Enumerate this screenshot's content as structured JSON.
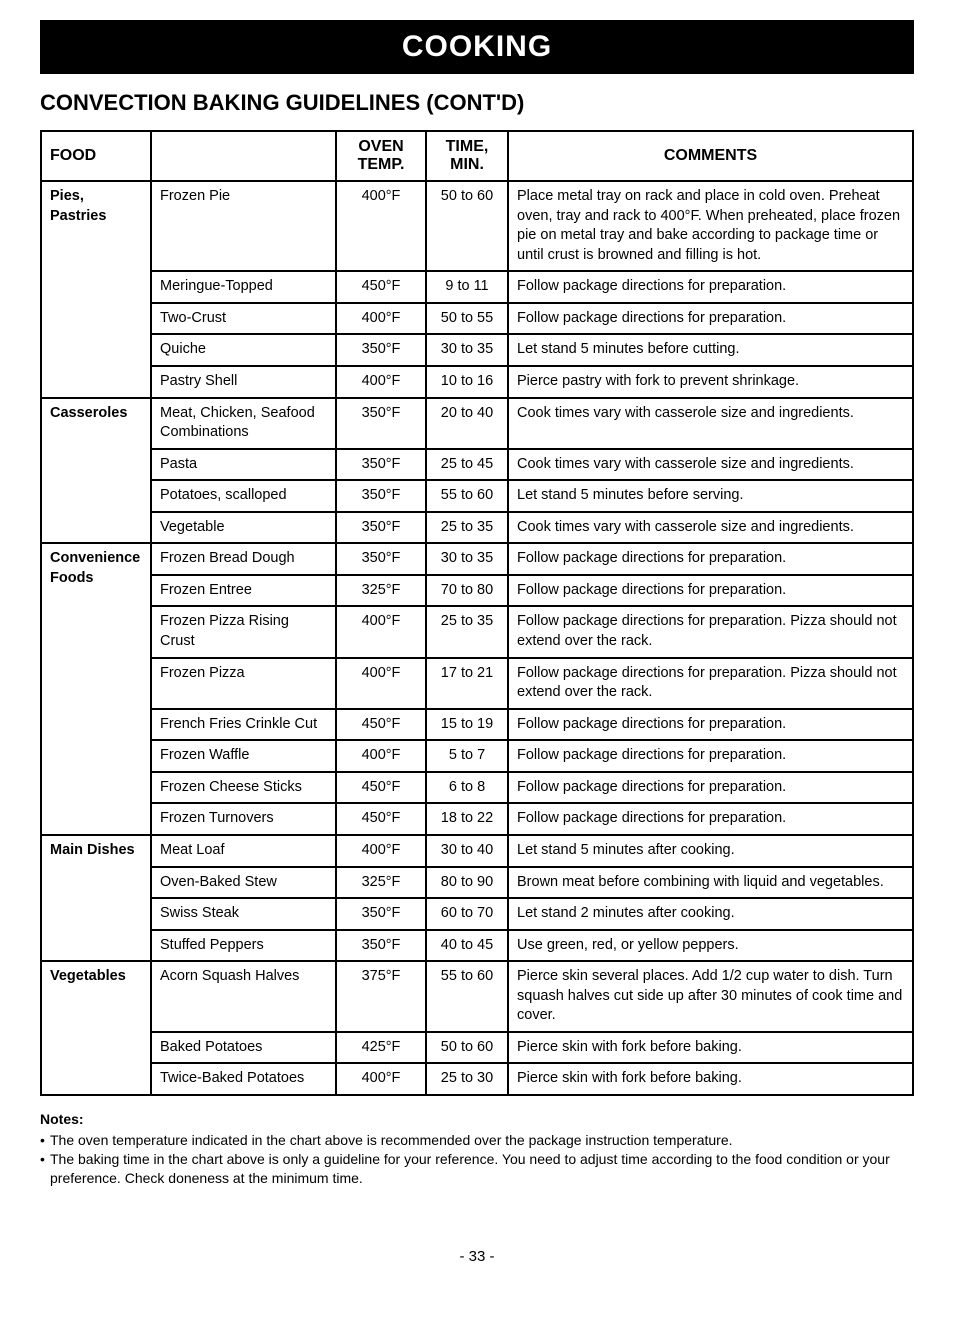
{
  "banner": "COOKING",
  "subtitle": "CONVECTION BAKING GUIDELINES (CONT'D)",
  "headers": {
    "food": "FOOD",
    "blank": "",
    "temp": "OVEN TEMP.",
    "time": "TIME, MIN.",
    "comments": "COMMENTS"
  },
  "groups": [
    {
      "category": "Pies, Pastries",
      "rows": [
        {
          "item": "Frozen Pie",
          "temp": "400°F",
          "time": "50 to 60",
          "comments": "Place metal tray on rack and place in cold oven. Preheat oven, tray and rack to 400°F. When preheated, place frozen pie on metal tray and bake according to package time or until crust is browned and filling is hot."
        },
        {
          "item": "Meringue-Topped",
          "temp": "450°F",
          "time": "9 to 11",
          "comments": "Follow package directions for preparation."
        },
        {
          "item": "Two-Crust",
          "temp": "400°F",
          "time": "50 to 55",
          "comments": "Follow package directions for preparation."
        },
        {
          "item": "Quiche",
          "temp": "350°F",
          "time": "30 to 35",
          "comments": "Let stand 5 minutes before cutting."
        },
        {
          "item": "Pastry Shell",
          "temp": "400°F",
          "time": "10 to 16",
          "comments": "Pierce pastry with fork to prevent shrinkage."
        }
      ]
    },
    {
      "category": "Casseroles",
      "rows": [
        {
          "item": "Meat, Chicken, Seafood Combinations",
          "temp": "350°F",
          "time": "20 to 40",
          "comments": "Cook times vary with casserole size and ingredients."
        },
        {
          "item": "Pasta",
          "temp": "350°F",
          "time": "25 to 45",
          "comments": "Cook times vary with casserole size and ingredients."
        },
        {
          "item": "Potatoes, scalloped",
          "temp": "350°F",
          "time": "55 to 60",
          "comments": "Let stand 5 minutes before serving."
        },
        {
          "item": "Vegetable",
          "temp": "350°F",
          "time": "25 to 35",
          "comments": "Cook times vary with casserole size and ingredients."
        }
      ]
    },
    {
      "category": "Convenience Foods",
      "rows": [
        {
          "item": "Frozen Bread Dough",
          "temp": "350°F",
          "time": "30 to 35",
          "comments": "Follow package directions for preparation."
        },
        {
          "item": "Frozen Entree",
          "temp": "325°F",
          "time": "70 to 80",
          "comments": "Follow package directions for preparation."
        },
        {
          "item": "Frozen Pizza Rising Crust",
          "temp": "400°F",
          "time": "25 to 35",
          "comments": "Follow package directions for preparation. Pizza should not extend over the rack."
        },
        {
          "item": "Frozen Pizza",
          "temp": "400°F",
          "time": "17 to 21",
          "comments": "Follow package directions for preparation. Pizza should not extend over the rack."
        },
        {
          "item": "French Fries Crinkle Cut",
          "temp": "450°F",
          "time": "15 to 19",
          "comments": "Follow package directions for preparation."
        },
        {
          "item": "Frozen Waffle",
          "temp": "400°F",
          "time": "5 to 7",
          "comments": "Follow package directions for preparation."
        },
        {
          "item": "Frozen Cheese Sticks",
          "temp": "450°F",
          "time": "6 to 8",
          "comments": "Follow package directions for preparation."
        },
        {
          "item": "Frozen Turnovers",
          "temp": "450°F",
          "time": "18 to 22",
          "comments": "Follow package directions for preparation."
        }
      ]
    },
    {
      "category": "Main Dishes",
      "rows": [
        {
          "item": "Meat Loaf",
          "temp": "400°F",
          "time": "30 to 40",
          "comments": "Let stand 5 minutes after cooking."
        },
        {
          "item": "Oven-Baked Stew",
          "temp": "325°F",
          "time": "80 to 90",
          "comments": "Brown meat before combining with liquid and vegetables."
        },
        {
          "item": "Swiss Steak",
          "temp": "350°F",
          "time": "60 to 70",
          "comments": "Let stand 2 minutes after cooking."
        },
        {
          "item": "Stuffed Peppers",
          "temp": "350°F",
          "time": "40 to 45",
          "comments": "Use green, red, or yellow peppers."
        }
      ]
    },
    {
      "category": "Vegetables",
      "rows": [
        {
          "item": "Acorn Squash Halves",
          "temp": "375°F",
          "time": "55 to 60",
          "comments": "Pierce skin several places. Add 1/2 cup water to dish. Turn squash halves cut side up after 30 minutes of cook time and cover."
        },
        {
          "item": "Baked Potatoes",
          "temp": "425°F",
          "time": "50 to 60",
          "comments": "Pierce skin with fork before baking."
        },
        {
          "item": "Twice-Baked Potatoes",
          "temp": "400°F",
          "time": "25 to 30",
          "comments": "Pierce skin with fork before baking."
        }
      ]
    }
  ],
  "notes": {
    "title": "Notes:",
    "items": [
      "The oven temperature indicated in the chart above is recommended over the package instruction temperature.",
      "The baking time in the chart above is only a guideline for your reference. You need to adjust time according to the food condition or your preference. Check doneness at the minimum time."
    ]
  },
  "pagenum": "- 33 -"
}
